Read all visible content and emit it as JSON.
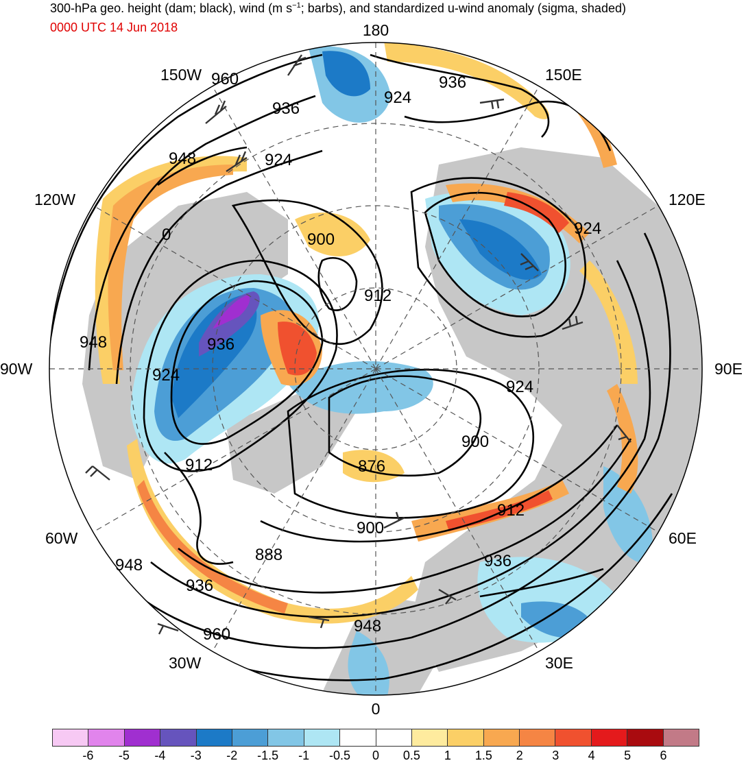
{
  "title_main": "300-hPa geo. height (dam; black), wind (m s",
  "title_sup": "−1",
  "title_rest": "; barbs), and standardized u-wind anomaly (sigma, shaded)",
  "valid_time": "0000 UTC 14 Jun 2018",
  "longitude_labels": {
    "top": "180",
    "bottom": "0",
    "left": "90W",
    "right": "90E",
    "w150": "150W",
    "e150": "150E",
    "w120": "120W",
    "e120": "120E",
    "w60": "60W",
    "e60": "60E",
    "w30": "30W",
    "e30": "30E"
  },
  "height_contour_labels": [
    "960",
    "936",
    "924",
    "936",
    "948",
    "924",
    "0",
    "900",
    "912",
    "936",
    "948",
    "924",
    "912",
    "876",
    "900",
    "924",
    "900",
    "912",
    "936",
    "888",
    "948",
    "936",
    "960",
    "948",
    "924"
  ],
  "colorbar": {
    "colors": [
      "#f7c9f4",
      "#e184ec",
      "#a02fd0",
      "#6654bd",
      "#1c7ac7",
      "#4c9ed6",
      "#82c6e6",
      "#aee6f4",
      "#ffffff",
      "#ffffff",
      "#feeb9e",
      "#fbcf66",
      "#f8a850",
      "#f58544",
      "#f0512f",
      "#e41a1c",
      "#a90b0f",
      "#c27a87"
    ],
    "labels": [
      "-6",
      "-5",
      "-4",
      "-3",
      "-2",
      "-1.5",
      "-1",
      "-0.5",
      "0",
      "0.5",
      "1",
      "1.5",
      "2",
      "3",
      "4",
      "5",
      "6"
    ]
  },
  "colors": {
    "land": "#c7c7c7",
    "ocean": "#ffffff",
    "contour": "#000000",
    "valid_time": "#e00000"
  }
}
